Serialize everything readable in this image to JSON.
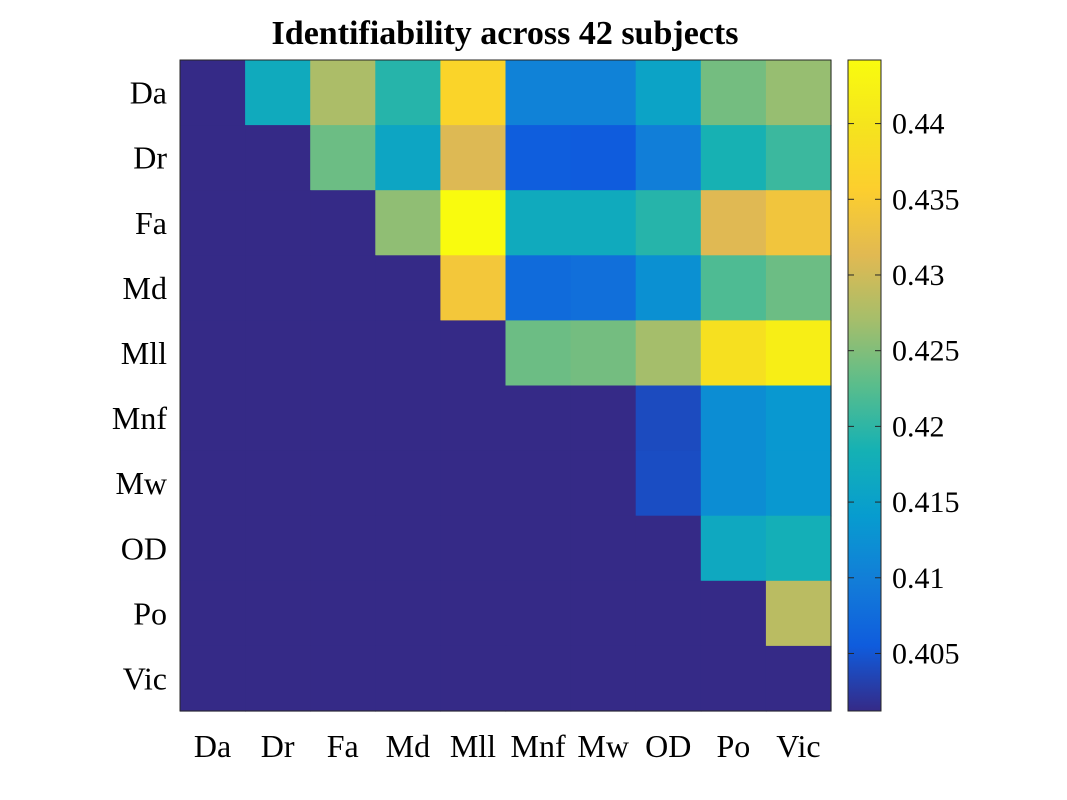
{
  "chart_data": {
    "type": "heatmap",
    "title": "Identifiability across 42 subjects",
    "xlabel": "",
    "ylabel": "",
    "x_categories": [
      "Da",
      "Dr",
      "Fa",
      "Md",
      "Mll",
      "Mnf",
      "Mw",
      "OD",
      "Po",
      "Vic"
    ],
    "y_categories": [
      "Da",
      "Dr",
      "Fa",
      "Md",
      "Mll",
      "Mnf",
      "Mw",
      "OD",
      "Po",
      "Vic"
    ],
    "values": [
      [
        0.4012,
        0.417,
        0.4275,
        0.4195,
        0.4368,
        0.4105,
        0.4105,
        0.4155,
        0.4242,
        0.4262
      ],
      [
        0.4012,
        0.4012,
        0.4238,
        0.416,
        0.431,
        0.4058,
        0.4055,
        0.41,
        0.4185,
        0.4208
      ],
      [
        0.4012,
        0.4012,
        0.4012,
        0.4258,
        0.4442,
        0.417,
        0.417,
        0.4195,
        0.4312,
        0.4338
      ],
      [
        0.4012,
        0.4012,
        0.4012,
        0.4012,
        0.4342,
        0.4075,
        0.408,
        0.4125,
        0.422,
        0.4238
      ],
      [
        0.4012,
        0.4012,
        0.4012,
        0.4012,
        0.4012,
        0.4238,
        0.4242,
        0.427,
        0.4392,
        0.4418
      ],
      [
        0.4012,
        0.4012,
        0.4012,
        0.4012,
        0.4012,
        0.4012,
        0.4012,
        0.404,
        0.412,
        0.4135
      ],
      [
        0.4012,
        0.4012,
        0.4012,
        0.4012,
        0.4012,
        0.4012,
        0.4012,
        0.4042,
        0.412,
        0.4135
      ],
      [
        0.4012,
        0.4012,
        0.4012,
        0.4012,
        0.4012,
        0.4012,
        0.4012,
        0.4012,
        0.4165,
        0.418
      ],
      [
        0.4012,
        0.4012,
        0.4012,
        0.4012,
        0.4012,
        0.4012,
        0.4012,
        0.4012,
        0.4012,
        0.4285
      ],
      [
        0.4012,
        0.4012,
        0.4012,
        0.4012,
        0.4012,
        0.4012,
        0.4012,
        0.4012,
        0.4012,
        0.4012
      ]
    ],
    "colorbar": {
      "range": [
        0.4012,
        0.4442
      ],
      "ticks": [
        0.405,
        0.41,
        0.415,
        0.42,
        0.425,
        0.43,
        0.435,
        0.44
      ],
      "tick_labels": [
        "0.405",
        "0.41",
        "0.415",
        "0.42",
        "0.425",
        "0.43",
        "0.435",
        "0.44"
      ],
      "colormap": "parula",
      "position": "right"
    },
    "grid": false
  }
}
